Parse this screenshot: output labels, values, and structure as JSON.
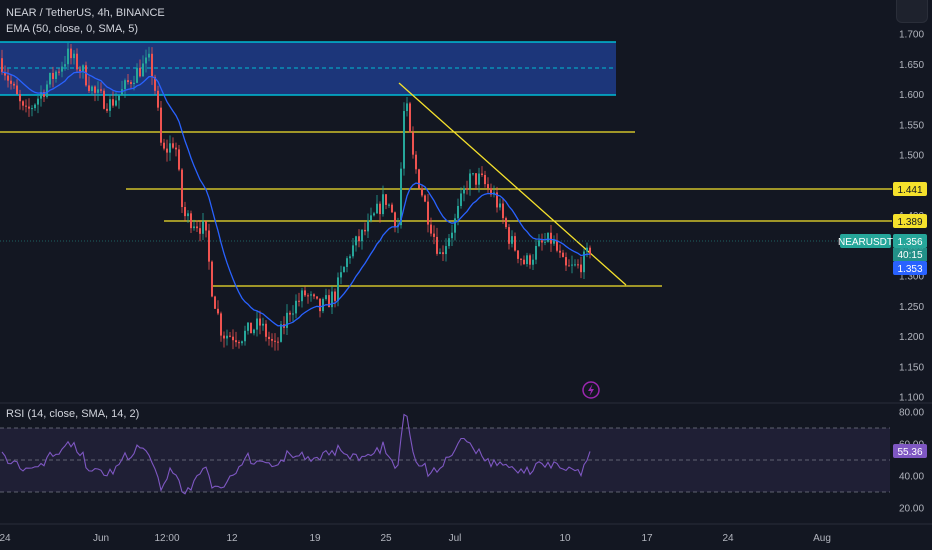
{
  "header": {
    "title": "NEAR / TetherUS, 4h, BINANCE",
    "indicator": "EMA (50, close, 0, SMA, 5)"
  },
  "rsi_panel": {
    "title": "RSI (14, close, SMA, 14, 2)",
    "value_tag": "55.36",
    "levels": [
      30,
      50,
      70
    ],
    "band_color": "#7e57c2",
    "ticks": [
      "80.00",
      "60.00",
      "40.00",
      "20.00"
    ]
  },
  "price_axis": {
    "ticks": [
      "1.700",
      "1.650",
      "1.600",
      "1.550",
      "1.500",
      "1.450",
      "1.400",
      "1.350",
      "1.300",
      "1.250",
      "1.200",
      "1.150",
      "1.100"
    ],
    "ylim": [
      1.1,
      1.72
    ]
  },
  "time_axis": {
    "labels": [
      "24",
      "Jun",
      "12:00",
      "12",
      "19",
      "25",
      "Jul",
      "10",
      "17",
      "24",
      "Aug"
    ]
  },
  "symbol_tag": {
    "name": "NEARUSDT",
    "price": "1.356",
    "countdown": "40:15",
    "low": "1.353",
    "color": "#26a69a"
  },
  "level_tags": {
    "l1441": "1.441",
    "l1389": "1.389"
  },
  "icons": {
    "flash": "lightning-icon",
    "top_button": "chevron-icon"
  },
  "colors": {
    "up": "#26a69a",
    "down": "#ef5350",
    "ema": "#2962ff",
    "lines": "#f5e12c",
    "zone_border": "#00bcd4",
    "zone_fill": "#1f3c8a",
    "rsi": "#7e57c2"
  },
  "chart_data": [
    {
      "type": "candlestick",
      "title": "NEAR / TetherUS, 4h, BINANCE",
      "ylim": [
        1.1,
        1.72
      ],
      "support_resistance_levels": [
        1.535,
        1.441,
        1.389,
        1.28
      ],
      "supply_zone": [
        1.6,
        1.685
      ],
      "trendline": [
        [
          1.617,
          1.28
        ]
      ],
      "series": [
        {
          "name": "EMA (50, close, 0, SMA, 5)"
        }
      ],
      "last_price": 1.356,
      "grid": false
    },
    {
      "type": "line",
      "title": "RSI (14, close, SMA, 14, 2)",
      "ylim": [
        15,
        82
      ],
      "last_value": 55.36,
      "grid": false
    }
  ]
}
